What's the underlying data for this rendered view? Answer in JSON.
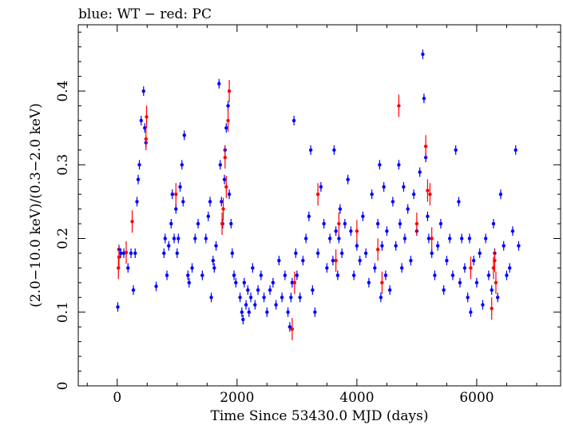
{
  "chart_data": {
    "type": "scatter",
    "title": "blue: WT − red: PC",
    "xlabel": "Time Since 53430.0 MJD (days)",
    "ylabel": "(2.0−10.0 keV)/(0.3−2.0 keV)",
    "xlim": [
      -650,
      7400
    ],
    "ylim": [
      0,
      0.49
    ],
    "xticks": [
      0,
      2000,
      4000,
      6000
    ],
    "xtick_labels": [
      "0",
      "2000",
      "4000",
      "6000"
    ],
    "yticks": [
      0,
      0.1,
      0.2,
      0.3,
      0.4
    ],
    "ytick_labels": [
      "0",
      "0.1",
      "0.2",
      "0.3",
      "0.4"
    ],
    "grid": false,
    "series": [
      {
        "name": "WT",
        "color": "#0000ff",
        "x": [
          10,
          30,
          60,
          110,
          180,
          230,
          270,
          300,
          330,
          350,
          370,
          400,
          440,
          460,
          480,
          650,
          780,
          800,
          830,
          860,
          900,
          920,
          950,
          980,
          1000,
          1020,
          1050,
          1080,
          1100,
          1120,
          1180,
          1200,
          1250,
          1300,
          1350,
          1420,
          1480,
          1520,
          1550,
          1570,
          1600,
          1620,
          1650,
          1700,
          1720,
          1740,
          1760,
          1790,
          1800,
          1820,
          1850,
          1870,
          1900,
          1920,
          1950,
          1980,
          2050,
          2080,
          2100,
          2120,
          2150,
          2180,
          2200,
          2230,
          2260,
          2300,
          2350,
          2400,
          2450,
          2500,
          2550,
          2600,
          2650,
          2700,
          2750,
          2800,
          2850,
          2880,
          2900,
          2920,
          2950,
          2980,
          3000,
          3050,
          3100,
          3150,
          3200,
          3230,
          3260,
          3300,
          3350,
          3400,
          3450,
          3500,
          3550,
          3600,
          3620,
          3650,
          3680,
          3700,
          3720,
          3750,
          3800,
          3850,
          3900,
          3950,
          4000,
          4050,
          4100,
          4150,
          4200,
          4250,
          4300,
          4350,
          4380,
          4400,
          4420,
          4450,
          4480,
          4500,
          4550,
          4600,
          4650,
          4700,
          4720,
          4750,
          4780,
          4800,
          4850,
          4900,
          4950,
          5000,
          5050,
          5100,
          5120,
          5150,
          5180,
          5200,
          5250,
          5300,
          5350,
          5400,
          5450,
          5500,
          5550,
          5600,
          5650,
          5700,
          5720,
          5750,
          5800,
          5850,
          5880,
          5900,
          5950,
          6000,
          6050,
          6100,
          6150,
          6200,
          6250,
          6280,
          6300,
          6350,
          6400,
          6450,
          6500,
          6550,
          6600,
          6650,
          6700
        ],
        "y": [
          0.107,
          0.185,
          0.18,
          0.18,
          0.16,
          0.18,
          0.13,
          0.18,
          0.25,
          0.28,
          0.3,
          0.36,
          0.4,
          0.35,
          0.33,
          0.135,
          0.18,
          0.2,
          0.15,
          0.19,
          0.22,
          0.26,
          0.2,
          0.24,
          0.18,
          0.2,
          0.27,
          0.3,
          0.25,
          0.34,
          0.15,
          0.14,
          0.16,
          0.2,
          0.22,
          0.15,
          0.2,
          0.23,
          0.25,
          0.12,
          0.17,
          0.16,
          0.19,
          0.41,
          0.3,
          0.25,
          0.22,
          0.28,
          0.32,
          0.35,
          0.38,
          0.26,
          0.22,
          0.18,
          0.15,
          0.14,
          0.12,
          0.1,
          0.09,
          0.14,
          0.11,
          0.13,
          0.1,
          0.12,
          0.16,
          0.11,
          0.13,
          0.15,
          0.12,
          0.1,
          0.13,
          0.14,
          0.11,
          0.17,
          0.12,
          0.15,
          0.1,
          0.08,
          0.12,
          0.14,
          0.36,
          0.18,
          0.15,
          0.12,
          0.17,
          0.2,
          0.23,
          0.32,
          0.13,
          0.1,
          0.18,
          0.27,
          0.22,
          0.16,
          0.2,
          0.17,
          0.32,
          0.21,
          0.15,
          0.2,
          0.24,
          0.18,
          0.22,
          0.28,
          0.21,
          0.15,
          0.19,
          0.17,
          0.23,
          0.18,
          0.14,
          0.26,
          0.16,
          0.22,
          0.3,
          0.12,
          0.19,
          0.27,
          0.15,
          0.21,
          0.13,
          0.25,
          0.19,
          0.3,
          0.22,
          0.16,
          0.27,
          0.2,
          0.24,
          0.17,
          0.26,
          0.21,
          0.29,
          0.45,
          0.39,
          0.31,
          0.23,
          0.2,
          0.18,
          0.15,
          0.19,
          0.22,
          0.13,
          0.17,
          0.2,
          0.15,
          0.32,
          0.25,
          0.14,
          0.2,
          0.16,
          0.12,
          0.2,
          0.1,
          0.17,
          0.14,
          0.18,
          0.11,
          0.2,
          0.15,
          0.13,
          0.22,
          0.18,
          0.12,
          0.26,
          0.19,
          0.15,
          0.16,
          0.21,
          0.32,
          0.19
        ]
      },
      {
        "name": "PC",
        "color": "#ff0000",
        "x": [
          20,
          30,
          150,
          250,
          480,
          490,
          980,
          1750,
          1770,
          1800,
          1820,
          1850,
          1870,
          2920,
          2960,
          3350,
          3650,
          3700,
          4000,
          4350,
          4420,
          4700,
          5000,
          5150,
          5180,
          5220,
          5250,
          5900,
          6250,
          6280,
          6300,
          6320
        ],
        "y": [
          0.16,
          0.175,
          0.181,
          0.223,
          0.335,
          0.365,
          0.26,
          0.22,
          0.24,
          0.31,
          0.27,
          0.36,
          0.4,
          0.077,
          0.14,
          0.26,
          0.17,
          0.22,
          0.21,
          0.185,
          0.14,
          0.38,
          0.22,
          0.325,
          0.265,
          0.26,
          0.2,
          0.16,
          0.105,
          0.16,
          0.17,
          0.14
        ]
      }
    ]
  }
}
